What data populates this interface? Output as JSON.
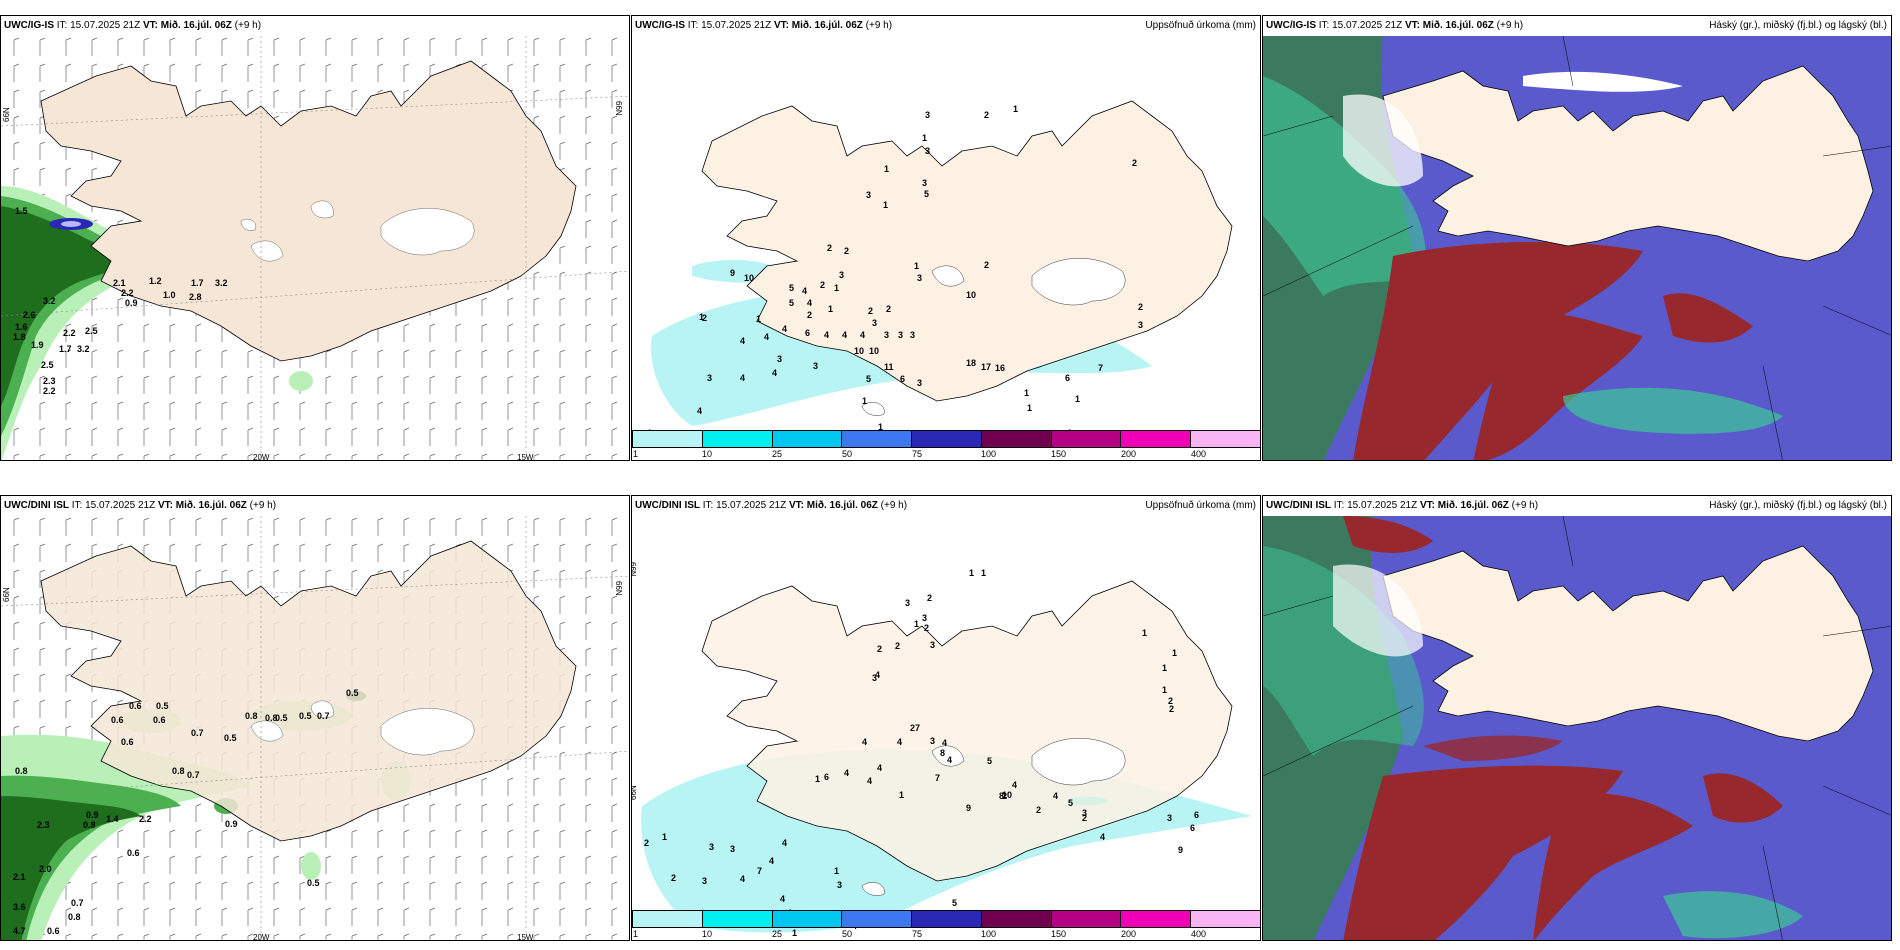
{
  "panels": [
    {
      "model": "UWC/IG-IS",
      "it_label": "IT:",
      "it": "15.07.2025 21Z",
      "vt_label": "VT:",
      "vt": "Mið. 16.júl. 06Z",
      "lead": "(+9 h)",
      "right": ""
    },
    {
      "model": "UWC/IG-IS",
      "it_label": "IT:",
      "it": "15.07.2025 21Z",
      "vt_label": "VT:",
      "vt": "Mið. 16.júl. 06Z",
      "lead": "(+9 h)",
      "right": "Uppsöfnuð úrkoma (mm)"
    },
    {
      "model": "UWC/IG-IS",
      "it_label": "IT:",
      "it": "15.07.2025 21Z",
      "vt_label": "VT:",
      "vt": "Mið. 16.júl. 06Z",
      "lead": "(+9 h)",
      "right": "Háský (gr.), miðský (fj.bl.) og lágský (bl.)"
    },
    {
      "model": "UWC/DINI ISL",
      "it_label": "IT:",
      "it": "15.07.2025 21Z",
      "vt_label": "VT:",
      "vt": "Mið. 16.júl. 06Z",
      "lead": "(+9 h)",
      "right": ""
    },
    {
      "model": "UWC/DINI ISL",
      "it_label": "IT:",
      "it": "15.07.2025 21Z",
      "vt_label": "VT:",
      "vt": "Mið. 16.júl. 06Z",
      "lead": "(+9 h)",
      "right": "Uppsöfnuð úrkoma (mm)"
    },
    {
      "model": "UWC/DINI ISL",
      "it_label": "IT:",
      "it": "15.07.2025 21Z",
      "vt_label": "VT:",
      "vt": "Mið. 16.júl. 06Z",
      "lead": "(+9 h)",
      "right": "Háský (gr.), miðský (fj.bl.) og lágský (bl.)"
    }
  ],
  "axes": {
    "lat": "66N",
    "lon_left": "20W",
    "lon_right": "15W",
    "lat_side": "66N"
  },
  "legend": {
    "ticks": [
      "1",
      "10",
      "25",
      "50",
      "75",
      "100",
      "150",
      "200",
      "400"
    ],
    "colors": [
      "#b8f4f4",
      "#00f0f0",
      "#00c8f0",
      "#3c78f0",
      "#2828b4",
      "#700050",
      "#b40082",
      "#f000b4",
      "#f8b4f4"
    ]
  },
  "colors": {
    "land": "#f5e6d6",
    "ice": "#ffffff",
    "sea": "#ffffff",
    "green_dark": "#1e6e1e",
    "green_mid": "#4caf50",
    "green_light": "#b8f0b8",
    "cloud_high": "#5a5acd",
    "cloud_mid": "#96282e",
    "cloud_low": "#3cc896",
    "cloud_bg": "#3c7a60"
  },
  "wind_values_top": [
    "1.5",
    "2.1",
    "1.2",
    "1.7",
    "3.2",
    "2.2",
    "1.0",
    "2.8",
    "3.2",
    "0.9",
    "2.6",
    "1.6",
    "2.2",
    "2.5",
    "1.8",
    "1.9",
    "1.7",
    "3.2",
    "2.5",
    "2.3",
    "2.2"
  ],
  "wind_values_bottom": [
    "0.6",
    "0.5",
    "0.6",
    "0.6",
    "0.8",
    "0.5",
    "0.5",
    "0.8",
    "0.8",
    "0.9",
    "0.6",
    "0.7",
    "0.5",
    "0.8",
    "0.7",
    "0.8",
    "1.4",
    "2.3",
    "0.9",
    "2.2",
    "0.6",
    "2.0",
    "2.1",
    "3.6",
    "0.7",
    "0.8",
    "4.7",
    "0.6",
    "0.5",
    "0.7",
    "0.5"
  ],
  "precip_values_top": [
    "3",
    "2",
    "1",
    "1",
    "3",
    "1",
    "3",
    "5",
    "3",
    "1",
    "2",
    "2",
    "2",
    "1",
    "3",
    "9",
    "10",
    "5",
    "4",
    "2",
    "1",
    "3",
    "2",
    "10",
    "5",
    "4",
    "2",
    "1",
    "2",
    "2",
    "1",
    "3",
    "4",
    "6",
    "4",
    "4",
    "4",
    "3",
    "3",
    "3",
    "2",
    "3",
    "10",
    "10",
    "4",
    "2",
    "1",
    "3",
    "4",
    "3",
    "11",
    "18",
    "17",
    "16",
    "4",
    "4",
    "3",
    "5",
    "6",
    "6",
    "7",
    "3",
    "6",
    "4",
    "1",
    "1",
    "1",
    "1",
    "2",
    "1"
  ],
  "precip_values_bottom": [
    "1",
    "1",
    "2",
    "3",
    "1",
    "3",
    "2",
    "2",
    "2",
    "3",
    "1",
    "1",
    "1",
    "2",
    "2",
    "1",
    "3",
    "4",
    "7",
    "2",
    "4",
    "4",
    "3",
    "4",
    "4",
    "8",
    "5",
    "4",
    "4",
    "1",
    "6",
    "4",
    "1",
    "7",
    "9",
    "8",
    "2",
    "10",
    "4",
    "5",
    "3",
    "4",
    "2",
    "2",
    "4",
    "3",
    "2",
    "1",
    "3",
    "3",
    "6",
    "4",
    "4",
    "4",
    "7",
    "1",
    "10",
    "5",
    "9",
    "6",
    "3",
    "4",
    "4",
    "1",
    "2",
    "3",
    "4"
  ]
}
